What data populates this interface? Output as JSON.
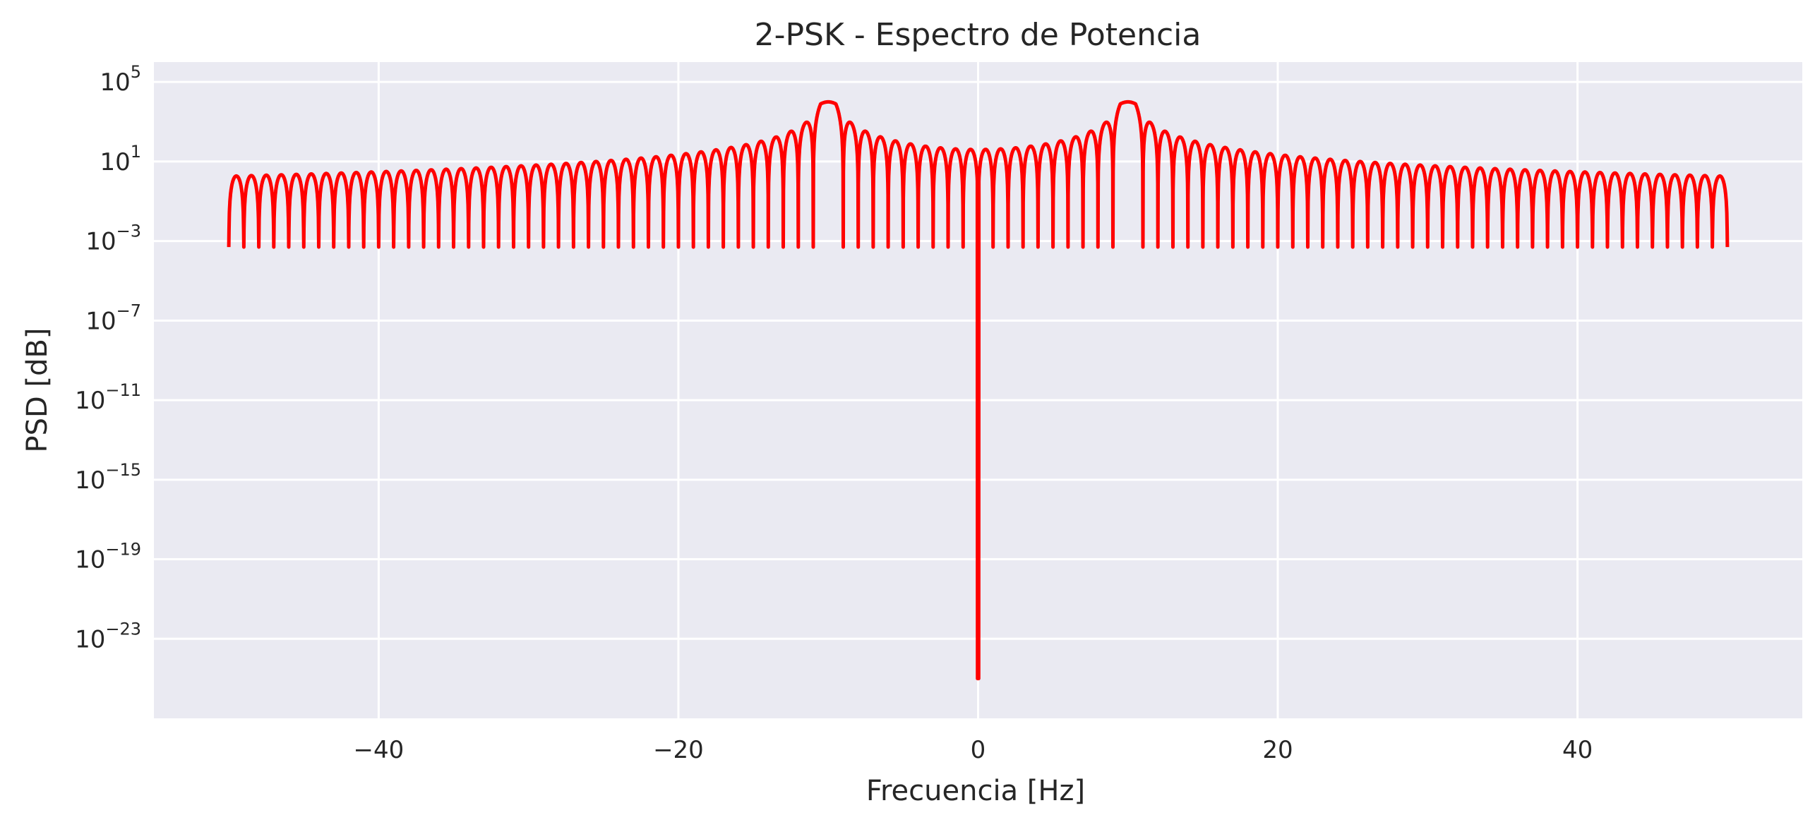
{
  "chart_data": {
    "type": "line",
    "title": "2-PSK - Espectro de Potencia",
    "xlabel": "Frecuencia [Hz]",
    "ylabel": "PSD [dB]",
    "xlim": [
      -55,
      55
    ],
    "x_ticks": [
      -40,
      -20,
      0,
      20,
      40
    ],
    "x_tick_labels": [
      "−40",
      "−20",
      "0",
      "20",
      "40"
    ],
    "y_scale": "log",
    "ylim_exponent": [
      -27,
      6
    ],
    "y_ticks": [
      {
        "base": "10",
        "exp": "5",
        "value": 100000
      },
      {
        "base": "10",
        "exp": "1",
        "value": 10
      },
      {
        "base": "10",
        "exp": "−3",
        "value": 0.001
      },
      {
        "base": "10",
        "exp": "−7",
        "value": 1e-07
      },
      {
        "base": "10",
        "exp": "−11",
        "value": 1e-11
      },
      {
        "base": "10",
        "exp": "−15",
        "value": 1e-15
      },
      {
        "base": "10",
        "exp": "−19",
        "value": 1e-19
      },
      {
        "base": "10",
        "exp": "−23",
        "value": 1e-23
      }
    ],
    "grid": true,
    "legend": "none",
    "series": [
      {
        "color": "#ff0000",
        "x_range": [
          -50,
          50
        ],
        "main_lobe_centers": [
          -10,
          10
        ],
        "main_lobe_peak": 20000,
        "sidelobe_peak_far": 15,
        "null_floor_far": 0.0005,
        "null_at_zero": 1e-25
      }
    ]
  },
  "colors": {
    "plot_background": "#eaeaf2",
    "grid": "#ffffff",
    "line": "#ff0000",
    "text": "#262626"
  }
}
